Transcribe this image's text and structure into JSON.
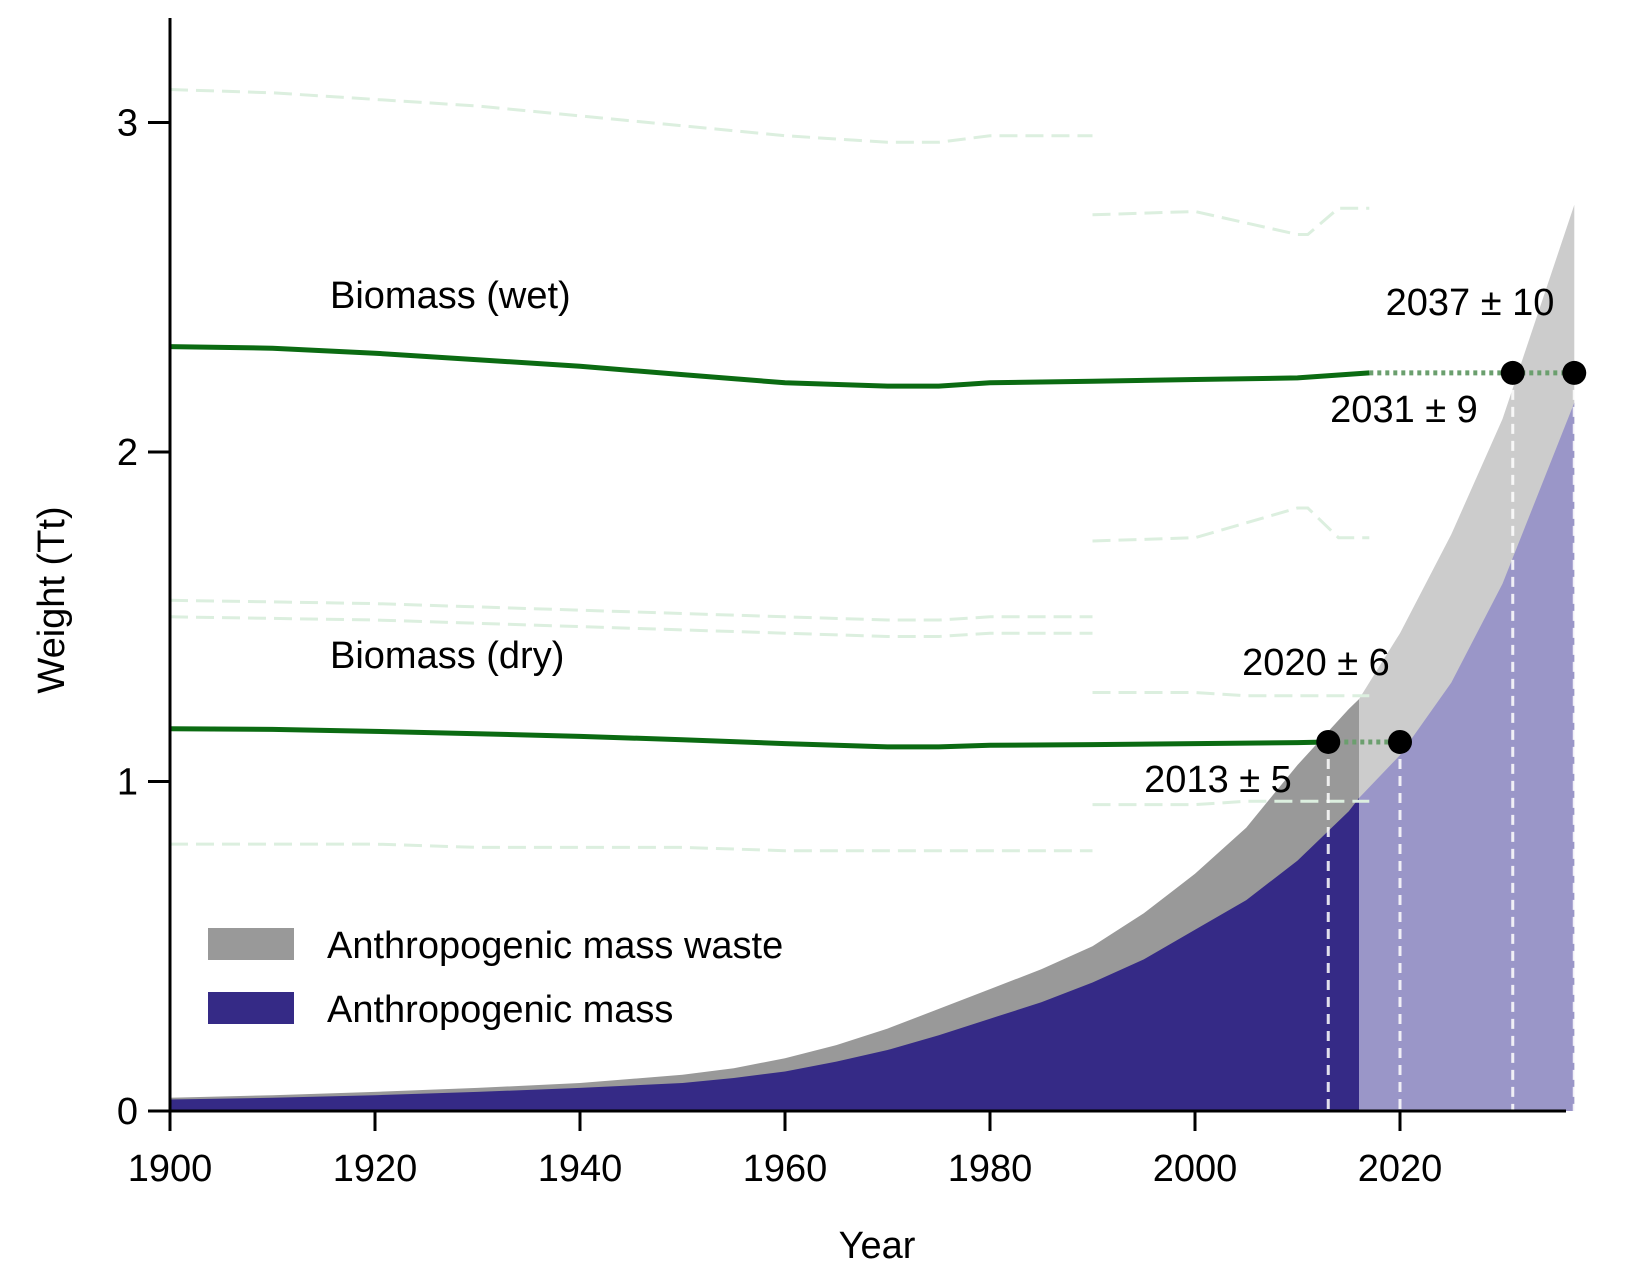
{
  "chart_data": {
    "type": "area",
    "xlabel": "Year",
    "ylabel": "Weight (Tt)",
    "xlim": [
      1900,
      2037
    ],
    "ylim": [
      0,
      3.3
    ],
    "x_ticks": [
      "1900",
      "1920",
      "1940",
      "1960",
      "1980",
      "2000",
      "2020"
    ],
    "y_ticks": [
      "0",
      "1",
      "2",
      "3"
    ],
    "colors": {
      "anthropogenic_mass": "#352a86",
      "anthropogenic_mass_projected": "#9a96c8",
      "waste": "#999999",
      "waste_projected": "#cccccc",
      "biomass": "#0b6b12",
      "biomass_projection": "#6b9f6e",
      "uncertainty": "#dcefdf"
    },
    "legend": {
      "placement": "bottom-left",
      "entries": [
        {
          "label": "Anthropogenic mass waste",
          "color": "#999999"
        },
        {
          "label": "Anthropogenic mass",
          "color": "#352a86"
        }
      ]
    },
    "anthropogenic_mass": {
      "x": [
        1900,
        1910,
        1920,
        1930,
        1940,
        1950,
        1955,
        1960,
        1965,
        1970,
        1975,
        1980,
        1985,
        1990,
        1995,
        2000,
        2005,
        2010,
        2015,
        2016,
        2020,
        2025,
        2030,
        2037
      ],
      "y": [
        0.035,
        0.04,
        0.048,
        0.058,
        0.07,
        0.085,
        0.1,
        0.12,
        0.15,
        0.185,
        0.23,
        0.28,
        0.33,
        0.39,
        0.46,
        0.55,
        0.64,
        0.76,
        0.91,
        0.95,
        1.08,
        1.3,
        1.6,
        2.15
      ]
    },
    "anthropogenic_mass_with_waste": {
      "x": [
        1900,
        1910,
        1920,
        1930,
        1940,
        1950,
        1955,
        1960,
        1965,
        1970,
        1975,
        1980,
        1985,
        1990,
        1995,
        2000,
        2005,
        2010,
        2015,
        2016,
        2020,
        2025,
        2030,
        2037
      ],
      "y": [
        0.04,
        0.048,
        0.058,
        0.07,
        0.085,
        0.11,
        0.13,
        0.16,
        0.2,
        0.25,
        0.31,
        0.37,
        0.43,
        0.5,
        0.6,
        0.72,
        0.86,
        1.05,
        1.22,
        1.25,
        1.45,
        1.75,
        2.1,
        2.75
      ]
    },
    "projection_start": 2016,
    "series": [
      {
        "name": "Biomass (wet)",
        "x": [
          1900,
          1910,
          1920,
          1930,
          1940,
          1950,
          1960,
          1970,
          1975,
          1980,
          1990,
          2000,
          2010,
          2017
        ],
        "y": [
          2.32,
          2.315,
          2.3,
          2.28,
          2.26,
          2.235,
          2.21,
          2.2,
          2.2,
          2.21,
          2.215,
          2.22,
          2.225,
          2.24
        ],
        "projection_x": [
          2017,
          2037
        ],
        "projection_y": [
          2.24,
          2.24
        ]
      },
      {
        "name": "Biomass (dry)",
        "x": [
          1900,
          1910,
          1920,
          1930,
          1940,
          1950,
          1960,
          1970,
          1975,
          1980,
          1990,
          2000,
          2010,
          2013
        ],
        "y": [
          1.16,
          1.158,
          1.152,
          1.145,
          1.137,
          1.127,
          1.115,
          1.105,
          1.105,
          1.11,
          1.112,
          1.115,
          1.118,
          1.12
        ],
        "projection_x": [
          2013,
          2020
        ],
        "projection_y": [
          1.12,
          1.12
        ]
      }
    ],
    "uncertainty_lines": [
      {
        "x": [
          1900,
          1910,
          1920,
          1930,
          1940,
          1950,
          1960,
          1970,
          1975,
          1980,
          1990
        ],
        "y": [
          3.1,
          3.09,
          3.07,
          3.05,
          3.02,
          2.99,
          2.96,
          2.94,
          2.94,
          2.96,
          2.96
        ]
      },
      {
        "x": [
          1990,
          2000,
          2010,
          2011,
          2014,
          2017
        ],
        "y": [
          2.72,
          2.73,
          2.66,
          2.66,
          2.74,
          2.74
        ]
      },
      {
        "x": [
          1990,
          2000,
          2010,
          2011,
          2014,
          2017
        ],
        "y": [
          1.73,
          1.74,
          1.83,
          1.83,
          1.74,
          1.74
        ]
      },
      {
        "x": [
          1900,
          1910,
          1920,
          1930,
          1940,
          1950,
          1960,
          1970,
          1975,
          1980,
          1990
        ],
        "y": [
          1.55,
          1.545,
          1.54,
          1.53,
          1.52,
          1.51,
          1.5,
          1.49,
          1.49,
          1.5,
          1.5
        ]
      },
      {
        "x": [
          1900,
          1910,
          1920,
          1930,
          1940,
          1950,
          1960,
          1970,
          1975,
          1980,
          1990
        ],
        "y": [
          1.5,
          1.495,
          1.49,
          1.48,
          1.47,
          1.46,
          1.45,
          1.44,
          1.44,
          1.45,
          1.45
        ]
      },
      {
        "x": [
          1990,
          2000,
          2005,
          2010,
          2017
        ],
        "y": [
          1.27,
          1.27,
          1.26,
          1.26,
          1.26
        ]
      },
      {
        "x": [
          1990,
          2000,
          2005,
          2010,
          2017
        ],
        "y": [
          0.93,
          0.93,
          0.94,
          0.94,
          0.94
        ]
      },
      {
        "x": [
          1900,
          1910,
          1920,
          1930,
          1940,
          1950,
          1960,
          1970,
          1975,
          1980,
          1990
        ],
        "y": [
          0.81,
          0.81,
          0.81,
          0.8,
          0.8,
          0.8,
          0.79,
          0.79,
          0.79,
          0.79,
          0.79
        ]
      }
    ],
    "crossovers": [
      {
        "label": "2037 ± 10",
        "x": 2037,
        "y": 2.24
      },
      {
        "label": "2031 ± 9",
        "x": 2031,
        "y": 2.24
      },
      {
        "label": "2020 ± 6",
        "x": 2020,
        "y": 1.12
      },
      {
        "label": "2013 ± 5",
        "x": 2013,
        "y": 1.12
      }
    ]
  }
}
